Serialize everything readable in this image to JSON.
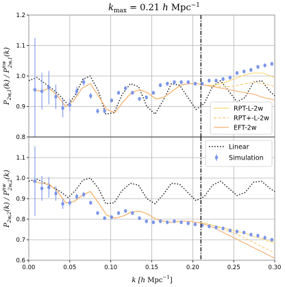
{
  "title": "k_max = 0.21 h Mpc⁻¹",
  "xlabel": "k [h Mpc⁻¹]",
  "kmax_line": 0.21,
  "colors": {
    "linear": "#000000",
    "simulation": "#7b95ea",
    "rpt_l": "#fbd56f",
    "rpt_plus": "#f8c86a",
    "eft": "#f6ad6e"
  },
  "legend_top": [
    {
      "label": "RPT-L-2w",
      "style": "solid",
      "color_key": "rpt_l"
    },
    {
      "label": "RPT+-L-2w",
      "style": "dashed",
      "color_key": "rpt_plus"
    },
    {
      "label": "EFT-2w",
      "style": "solid",
      "color_key": "eft"
    }
  ],
  "legend_bottom": [
    {
      "label": "Linear",
      "style": "dotted",
      "color_key": "linear"
    },
    {
      "label": "Simulation",
      "style": "marker",
      "color_key": "simulation"
    }
  ],
  "chart_data": [
    {
      "type": "line",
      "panel": "top",
      "ylabel": "P_{2w,1}(k) / P^{nw}_{2w,1}(k)",
      "xlim": [
        0.0,
        0.3
      ],
      "ylim": [
        0.8,
        1.2
      ],
      "xticks": [
        "0.00",
        "0.05",
        "0.10",
        "0.15",
        "0.20",
        "0.25",
        "0.30"
      ],
      "yticks": [
        "0.8",
        "0.9",
        "1.0",
        "1.1",
        "1.2"
      ],
      "grid": true,
      "legend_position": "lower-right",
      "series": [
        {
          "name": "Linear",
          "key": "linear",
          "x": [
            0.0,
            0.01,
            0.02,
            0.03,
            0.04,
            0.048,
            0.057,
            0.066,
            0.075,
            0.085,
            0.094,
            0.104,
            0.114,
            0.124,
            0.134,
            0.144,
            0.154,
            0.164,
            0.174,
            0.184,
            0.194,
            0.204,
            0.214,
            0.224,
            0.234,
            0.244,
            0.254,
            0.264,
            0.274,
            0.284,
            0.294,
            0.3
          ],
          "y": [
            0.985,
            0.995,
            0.975,
            0.955,
            0.93,
            0.905,
            0.94,
            0.99,
            1.0,
            0.95,
            0.875,
            0.88,
            0.94,
            0.975,
            0.965,
            0.9,
            0.875,
            0.92,
            0.975,
            0.97,
            0.93,
            0.89,
            0.91,
            0.965,
            0.985,
            0.95,
            0.915,
            0.93,
            0.98,
            0.985,
            0.95,
            0.935
          ]
        },
        {
          "name": "RPT-L-2w",
          "key": "rpt_l",
          "x": [
            0.005,
            0.015,
            0.025,
            0.035,
            0.045,
            0.055,
            0.065,
            0.075,
            0.085,
            0.095,
            0.105,
            0.115,
            0.125,
            0.135,
            0.145,
            0.155,
            0.165,
            0.175,
            0.185,
            0.195,
            0.205,
            0.215,
            0.225,
            0.235,
            0.245,
            0.255,
            0.265,
            0.275,
            0.285,
            0.295,
            0.3
          ],
          "y": [
            0.955,
            0.95,
            0.96,
            0.935,
            0.9,
            0.92,
            0.96,
            0.975,
            0.935,
            0.89,
            0.88,
            0.915,
            0.945,
            0.955,
            0.945,
            0.925,
            0.93,
            0.95,
            0.97,
            0.975,
            0.975,
            0.97,
            0.97,
            0.975,
            0.985,
            0.995,
            1.005,
            1.01,
            1.01,
            1.0,
            0.995
          ]
        },
        {
          "name": "RPT+-L-2w",
          "key": "rpt_plus",
          "x": [
            0.005,
            0.015,
            0.025,
            0.035,
            0.045,
            0.055,
            0.065,
            0.075,
            0.085,
            0.095,
            0.105,
            0.115,
            0.125,
            0.135,
            0.145,
            0.155,
            0.165,
            0.175,
            0.185,
            0.195,
            0.205,
            0.215,
            0.225,
            0.235,
            0.245,
            0.255,
            0.265,
            0.275,
            0.285,
            0.295,
            0.3
          ],
          "y": [
            0.955,
            0.95,
            0.96,
            0.935,
            0.9,
            0.92,
            0.96,
            0.975,
            0.935,
            0.89,
            0.88,
            0.915,
            0.945,
            0.955,
            0.945,
            0.925,
            0.93,
            0.95,
            0.97,
            0.975,
            0.975,
            0.97,
            0.965,
            0.965,
            0.965,
            0.97,
            0.975,
            0.98,
            0.975,
            0.97,
            0.965
          ]
        },
        {
          "name": "EFT-2w",
          "key": "eft",
          "x": [
            0.005,
            0.015,
            0.025,
            0.035,
            0.045,
            0.055,
            0.065,
            0.075,
            0.085,
            0.095,
            0.105,
            0.115,
            0.125,
            0.135,
            0.145,
            0.155,
            0.165,
            0.175,
            0.185,
            0.195,
            0.205,
            0.215,
            0.225,
            0.235,
            0.245,
            0.255,
            0.265,
            0.275,
            0.285,
            0.295,
            0.3
          ],
          "y": [
            0.955,
            0.95,
            0.96,
            0.935,
            0.9,
            0.92,
            0.96,
            0.975,
            0.935,
            0.89,
            0.88,
            0.915,
            0.945,
            0.955,
            0.945,
            0.925,
            0.93,
            0.95,
            0.97,
            0.975,
            0.975,
            0.97,
            0.965,
            0.96,
            0.955,
            0.95,
            0.945,
            0.94,
            0.93,
            0.925,
            0.92
          ]
        },
        {
          "name": "Simulation",
          "key": "simulation",
          "marker": true,
          "x": [
            0.0075,
            0.016,
            0.0245,
            0.033,
            0.0415,
            0.05,
            0.0585,
            0.067,
            0.0755,
            0.084,
            0.0925,
            0.101,
            0.1095,
            0.118,
            0.1265,
            0.135,
            0.1435,
            0.152,
            0.1605,
            0.169,
            0.1775,
            0.186,
            0.1945,
            0.203,
            0.2115,
            0.22,
            0.2285,
            0.237,
            0.2455,
            0.254,
            0.2625,
            0.271,
            0.2795,
            0.288,
            0.2965
          ],
          "y": [
            0.955,
            0.95,
            0.962,
            0.932,
            0.895,
            0.905,
            0.95,
            0.98,
            0.935,
            0.885,
            0.885,
            0.92,
            0.945,
            0.96,
            0.945,
            0.925,
            0.93,
            0.945,
            0.97,
            0.975,
            0.98,
            0.98,
            0.98,
            0.975,
            0.975,
            0.985,
            0.985,
            0.99,
            0.995,
            1.01,
            1.015,
            1.02,
            1.03,
            1.035,
            1.04
          ],
          "err": [
            0.17,
            0.06,
            0.055,
            0.04,
            0.03,
            0.02,
            0.015,
            0.012,
            0.01,
            0.008,
            0.007,
            0.006,
            0.005,
            0.005,
            0.004,
            0.004,
            0.004,
            0.003,
            0.003,
            0.003,
            0.003,
            0.003,
            0.003,
            0.002,
            0.002,
            0.002,
            0.002,
            0.002,
            0.002,
            0.002,
            0.002,
            0.002,
            0.002,
            0.002,
            0.002
          ]
        }
      ]
    },
    {
      "type": "line",
      "panel": "bottom",
      "ylabel": "P_{2w,2}(k) / P^{nw}_{2w,2}(k)",
      "xlim": [
        0.0,
        0.3
      ],
      "ylim": [
        0.6,
        1.2
      ],
      "xticks": [
        "0.00",
        "0.05",
        "0.10",
        "0.15",
        "0.20",
        "0.25",
        "0.30"
      ],
      "yticks": [
        "0.6",
        "0.7",
        "0.8",
        "0.9",
        "1.0",
        "1.1"
      ],
      "grid": true,
      "legend_position": "upper-right",
      "series": [
        {
          "name": "Linear",
          "key": "linear",
          "x": [
            0.0,
            0.01,
            0.02,
            0.03,
            0.04,
            0.048,
            0.057,
            0.066,
            0.075,
            0.085,
            0.094,
            0.104,
            0.114,
            0.124,
            0.134,
            0.144,
            0.154,
            0.164,
            0.174,
            0.184,
            0.194,
            0.204,
            0.214,
            0.224,
            0.234,
            0.244,
            0.254,
            0.264,
            0.274,
            0.284,
            0.294,
            0.3
          ],
          "y": [
            0.985,
            0.995,
            0.975,
            0.955,
            0.93,
            0.905,
            0.94,
            0.99,
            1.0,
            0.95,
            0.875,
            0.88,
            0.94,
            0.975,
            0.965,
            0.9,
            0.875,
            0.92,
            0.975,
            0.97,
            0.93,
            0.89,
            0.91,
            0.965,
            0.985,
            0.95,
            0.915,
            0.93,
            0.98,
            0.985,
            0.95,
            0.935
          ]
        },
        {
          "name": "RPT-L-2w",
          "key": "rpt_l",
          "x": [
            0.005,
            0.015,
            0.025,
            0.035,
            0.045,
            0.055,
            0.065,
            0.075,
            0.085,
            0.095,
            0.105,
            0.115,
            0.125,
            0.135,
            0.145,
            0.155,
            0.165,
            0.175,
            0.185,
            0.195,
            0.205,
            0.215,
            0.225,
            0.235,
            0.245,
            0.255,
            0.265,
            0.275,
            0.285,
            0.295,
            0.3
          ],
          "y": [
            0.985,
            0.975,
            0.97,
            0.935,
            0.88,
            0.885,
            0.915,
            0.935,
            0.88,
            0.82,
            0.805,
            0.815,
            0.835,
            0.84,
            0.825,
            0.8,
            0.79,
            0.785,
            0.79,
            0.79,
            0.785,
            0.78,
            0.77,
            0.76,
            0.75,
            0.74,
            0.73,
            0.715,
            0.705,
            0.69,
            0.685
          ]
        },
        {
          "name": "RPT+-L-2w",
          "key": "rpt_plus",
          "x": [
            0.005,
            0.015,
            0.025,
            0.035,
            0.045,
            0.055,
            0.065,
            0.075,
            0.085,
            0.095,
            0.105,
            0.115,
            0.125,
            0.135,
            0.145,
            0.155,
            0.165,
            0.175,
            0.185,
            0.195,
            0.205,
            0.215,
            0.225,
            0.235,
            0.245,
            0.255,
            0.265,
            0.275,
            0.285,
            0.295,
            0.3
          ],
          "y": [
            0.985,
            0.975,
            0.97,
            0.935,
            0.88,
            0.885,
            0.915,
            0.935,
            0.88,
            0.82,
            0.805,
            0.815,
            0.835,
            0.84,
            0.825,
            0.8,
            0.79,
            0.785,
            0.79,
            0.79,
            0.785,
            0.78,
            0.77,
            0.755,
            0.74,
            0.725,
            0.705,
            0.685,
            0.665,
            0.645,
            0.635
          ]
        },
        {
          "name": "EFT-2w",
          "key": "eft",
          "x": [
            0.005,
            0.015,
            0.025,
            0.035,
            0.045,
            0.055,
            0.065,
            0.075,
            0.085,
            0.095,
            0.105,
            0.115,
            0.125,
            0.135,
            0.145,
            0.155,
            0.165,
            0.175,
            0.185,
            0.195,
            0.205,
            0.215,
            0.225,
            0.235,
            0.245,
            0.255,
            0.265,
            0.275,
            0.285,
            0.295,
            0.3
          ],
          "y": [
            0.985,
            0.975,
            0.97,
            0.935,
            0.88,
            0.885,
            0.915,
            0.935,
            0.88,
            0.82,
            0.805,
            0.815,
            0.835,
            0.84,
            0.825,
            0.8,
            0.79,
            0.785,
            0.79,
            0.79,
            0.785,
            0.775,
            0.76,
            0.74,
            0.72,
            0.7,
            0.68,
            0.66,
            0.64,
            0.62,
            0.61
          ]
        },
        {
          "name": "Simulation",
          "key": "simulation",
          "marker": true,
          "x": [
            0.0075,
            0.016,
            0.0245,
            0.033,
            0.0415,
            0.05,
            0.0585,
            0.067,
            0.0755,
            0.084,
            0.0925,
            0.101,
            0.1095,
            0.118,
            0.1265,
            0.135,
            0.1435,
            0.152,
            0.1605,
            0.169,
            0.1775,
            0.186,
            0.1945,
            0.203,
            0.2115,
            0.22,
            0.2285,
            0.237,
            0.2455,
            0.254,
            0.2625,
            0.271,
            0.2795,
            0.288,
            0.2965
          ],
          "y": [
            0.985,
            0.95,
            0.955,
            0.925,
            0.875,
            0.88,
            0.91,
            0.92,
            0.88,
            0.83,
            0.805,
            0.81,
            0.83,
            0.84,
            0.83,
            0.805,
            0.79,
            0.785,
            0.79,
            0.785,
            0.79,
            0.785,
            0.78,
            0.775,
            0.77,
            0.765,
            0.76,
            0.755,
            0.745,
            0.74,
            0.735,
            0.725,
            0.72,
            0.71,
            0.7
          ],
          "err": [
            0.17,
            0.06,
            0.05,
            0.035,
            0.025,
            0.018,
            0.014,
            0.012,
            0.01,
            0.008,
            0.007,
            0.006,
            0.005,
            0.005,
            0.004,
            0.004,
            0.004,
            0.003,
            0.003,
            0.003,
            0.003,
            0.003,
            0.003,
            0.002,
            0.002,
            0.002,
            0.002,
            0.002,
            0.002,
            0.002,
            0.002,
            0.002,
            0.002,
            0.002,
            0.002
          ]
        }
      ]
    }
  ]
}
